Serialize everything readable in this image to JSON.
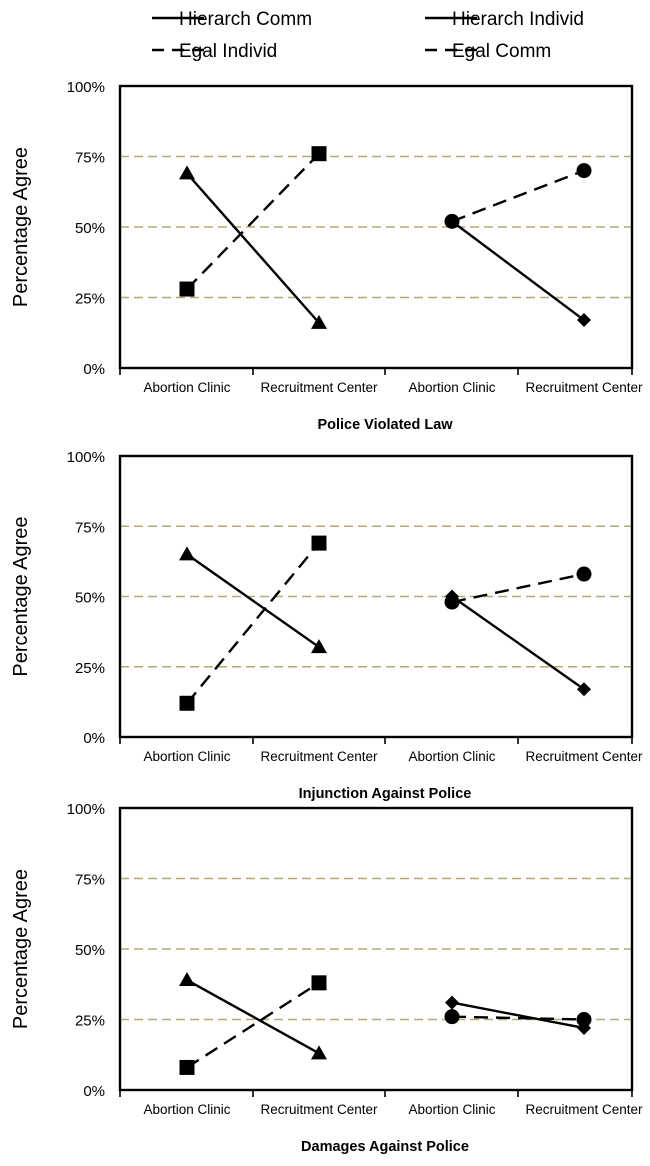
{
  "legend": [
    {
      "label": "Hierarch Comm",
      "style": "solid",
      "marker": "triangle"
    },
    {
      "label": "Hierarch Individ",
      "style": "solid",
      "marker": "diamond"
    },
    {
      "label": "Egal Individ",
      "style": "dashed",
      "marker": "square"
    },
    {
      "label": "Egal Comm",
      "style": "dashed",
      "marker": "circle"
    }
  ],
  "colors": {
    "line": "#000000",
    "gridline": "#b3aa7a",
    "frame": "#000000",
    "background": "#ffffff"
  },
  "chart_data": [
    {
      "type": "line",
      "title": "Police Violated Law",
      "ylabel": "Percentage Agree",
      "ylim": [
        0,
        100
      ],
      "yticks": [
        "0%",
        "25%",
        "50%",
        "75%",
        "100%"
      ],
      "categories": [
        "Abortion Clinic",
        "Recruitment Center",
        "Abortion Clinic",
        "Recruitment Center"
      ],
      "grid": true,
      "series": [
        {
          "name": "Hierarch Comm",
          "x": [
            0,
            1
          ],
          "values": [
            69,
            16
          ]
        },
        {
          "name": "Egal Individ",
          "x": [
            0,
            1
          ],
          "values": [
            28,
            76
          ]
        },
        {
          "name": "Hierarch Individ",
          "x": [
            2,
            3
          ],
          "values": [
            52,
            17
          ]
        },
        {
          "name": "Egal Comm",
          "x": [
            2,
            3
          ],
          "values": [
            52,
            70
          ]
        }
      ]
    },
    {
      "type": "line",
      "title": "Injunction Against Police",
      "ylabel": "Percentage Agree",
      "ylim": [
        0,
        100
      ],
      "yticks": [
        "0%",
        "25%",
        "50%",
        "75%",
        "100%"
      ],
      "categories": [
        "Abortion Clinic",
        "Recruitment Center",
        "Abortion Clinic",
        "Recruitment Center"
      ],
      "grid": true,
      "series": [
        {
          "name": "Hierarch Comm",
          "x": [
            0,
            1
          ],
          "values": [
            65,
            32
          ]
        },
        {
          "name": "Egal Individ",
          "x": [
            0,
            1
          ],
          "values": [
            12,
            69
          ]
        },
        {
          "name": "Hierarch Individ",
          "x": [
            2,
            3
          ],
          "values": [
            50,
            17
          ]
        },
        {
          "name": "Egal Comm",
          "x": [
            2,
            3
          ],
          "values": [
            48,
            58
          ]
        }
      ]
    },
    {
      "type": "line",
      "title": "Damages Against Police",
      "ylabel": "Percentage Agree",
      "ylim": [
        0,
        100
      ],
      "yticks": [
        "0%",
        "25%",
        "50%",
        "75%",
        "100%"
      ],
      "categories": [
        "Abortion Clinic",
        "Recruitment Center",
        "Abortion Clinic",
        "Recruitment Center"
      ],
      "grid": true,
      "series": [
        {
          "name": "Hierarch Comm",
          "x": [
            0,
            1
          ],
          "values": [
            39,
            13
          ]
        },
        {
          "name": "Egal Individ",
          "x": [
            0,
            1
          ],
          "values": [
            8,
            38
          ]
        },
        {
          "name": "Hierarch Individ",
          "x": [
            2,
            3
          ],
          "values": [
            31,
            22
          ]
        },
        {
          "name": "Egal Comm",
          "x": [
            2,
            3
          ],
          "values": [
            26,
            25
          ]
        }
      ]
    }
  ]
}
